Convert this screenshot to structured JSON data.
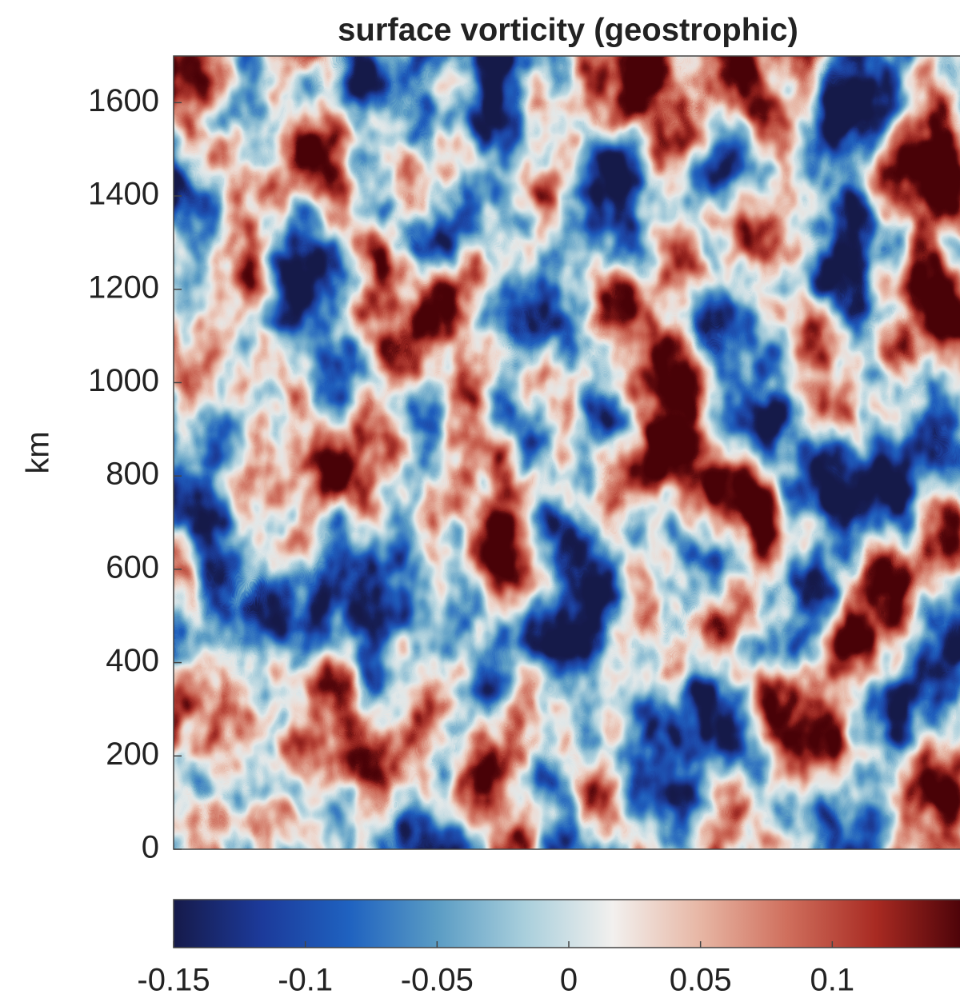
{
  "chart_data": {
    "type": "heatmap",
    "title": "surface vorticity (geostrophic)",
    "y_label": "km",
    "ylim": [
      0,
      1700
    ],
    "yticks": [
      0,
      200,
      400,
      600,
      800,
      1000,
      1200,
      1400,
      1600
    ],
    "colorbar": {
      "clim": [
        -0.15,
        0.15
      ],
      "ticks": [
        -0.15,
        -0.1,
        -0.05,
        0,
        0.05,
        0.1
      ]
    },
    "colormap": [
      "#161a4a",
      "#1c3a9a",
      "#1f62c0",
      "#5a9cc4",
      "#a9cfdc",
      "#f2f0ee",
      "#e7b6a4",
      "#cf6e5c",
      "#a82a22",
      "#4a0208"
    ]
  }
}
